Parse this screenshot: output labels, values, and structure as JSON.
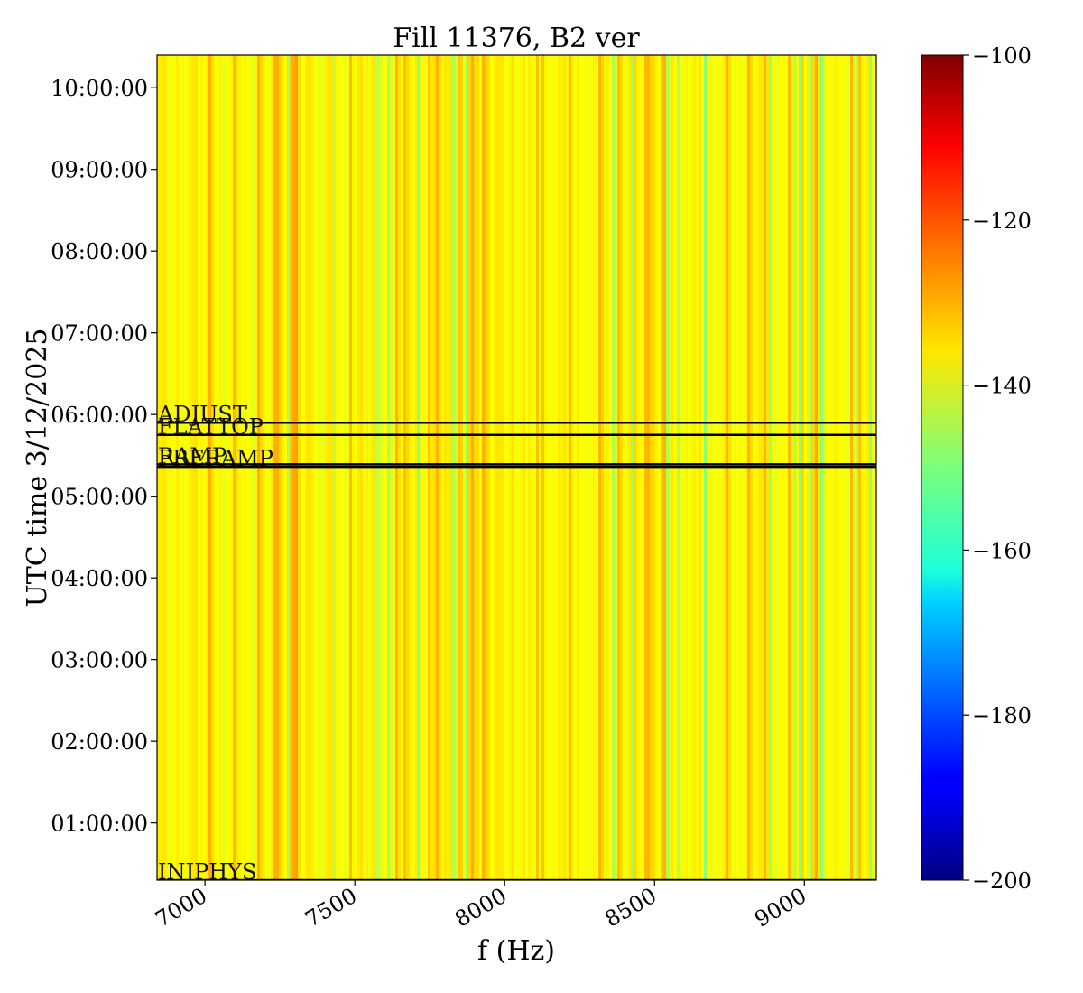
{
  "chart_data": {
    "type": "heatmap",
    "title": "Fill 11376, B2 ver",
    "xlabel": "f (Hz)",
    "ylabel": "UTC time 3/12/2025",
    "xlim": [
      6840,
      9240
    ],
    "ylim_hours": [
      0.3,
      10.4
    ],
    "x_ticks": [
      7000,
      7500,
      8000,
      8500,
      9000
    ],
    "x_tick_labels": [
      "7000",
      "7500",
      "8000",
      "8500",
      "9000"
    ],
    "y_ticks": [
      1,
      2,
      3,
      4,
      5,
      6,
      7,
      8,
      9,
      10
    ],
    "y_tick_labels": [
      "01:00:00",
      "02:00:00",
      "03:00:00",
      "04:00:00",
      "05:00:00",
      "06:00:00",
      "07:00:00",
      "08:00:00",
      "09:00:00",
      "10:00:00"
    ],
    "colorbar": {
      "colormap": "jet",
      "range": [
        -200,
        -100
      ],
      "ticks": [
        -100,
        -120,
        -140,
        -160,
        -180,
        -200
      ],
      "tick_labels": [
        "−100",
        "−120",
        "−140",
        "−160",
        "−180",
        "−200"
      ]
    },
    "mean_level_db": -137,
    "phase_markers": [
      {
        "label": "INJPHYS",
        "time_hours": 0.3
      },
      {
        "label": "PRERAMP",
        "time_hours": 5.36
      },
      {
        "label": "RAMP",
        "time_hours": 5.39
      },
      {
        "label": "FLATTOP",
        "time_hours": 5.75
      },
      {
        "label": "ADJUST",
        "time_hours": 5.9
      }
    ]
  }
}
